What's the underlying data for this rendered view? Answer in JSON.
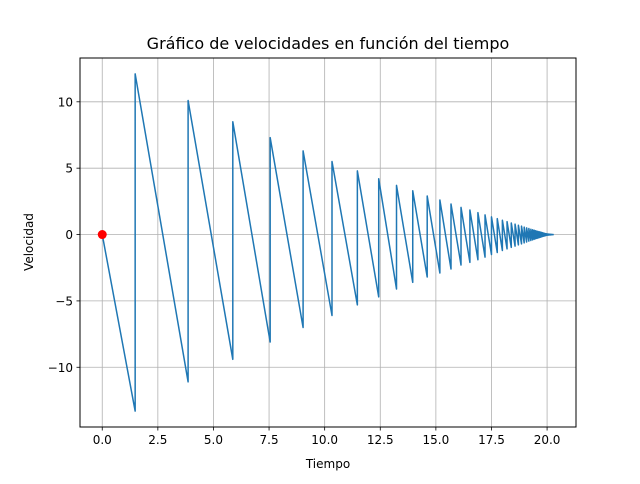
{
  "chart_data": {
    "type": "line",
    "title": "Gráfico de velocidades en función del tiempo",
    "xlabel": "Tiempo",
    "ylabel": "Velocidad",
    "xlim": [
      -1.0,
      21.3
    ],
    "ylim": [
      -14.5,
      13.3
    ],
    "xticks": [
      0.0,
      2.5,
      5.0,
      7.5,
      10.0,
      12.5,
      15.0,
      17.5,
      20.0
    ],
    "xtick_labels": [
      "0.0",
      "2.5",
      "5.0",
      "7.5",
      "10.0",
      "12.5",
      "15.0",
      "17.5",
      "20.0"
    ],
    "yticks": [
      -10,
      -5,
      0,
      5,
      10
    ],
    "ytick_labels": [
      "−10",
      "−5",
      "0",
      "5",
      "10"
    ],
    "grid": true,
    "series": [
      {
        "color": "#1f77b4",
        "bounce_times": [
          0,
          1.48,
          3.86,
          5.87,
          7.55,
          9.03,
          10.33,
          11.47,
          12.43,
          13.23,
          13.96,
          14.61,
          15.18,
          15.68,
          16.13,
          16.53,
          16.89,
          17.21,
          17.5,
          17.76,
          17.99,
          18.2,
          18.39,
          18.56,
          18.71,
          18.85,
          18.97,
          19.08,
          19.18,
          19.27,
          19.35,
          19.42,
          19.48,
          19.54,
          19.59,
          19.64,
          19.68,
          19.72,
          19.76,
          19.79,
          19.82,
          19.85,
          19.87,
          19.89,
          19.91,
          19.93,
          19.95,
          19.97,
          19.99,
          20.01,
          20.03,
          20.05,
          20.07,
          20.09,
          20.11,
          20.13,
          20.15,
          20.17,
          20.19,
          20.21,
          20.23,
          20.3
        ],
        "start_velocity": 0,
        "pre_impact_velocities": [
          -13.3,
          -11.1,
          -9.4,
          -8.1,
          -7.0,
          -6.1,
          -5.3,
          -4.7,
          -4.1,
          -3.6,
          -3.2,
          -2.9,
          -2.6,
          -2.3,
          -2.1,
          -1.9,
          -1.7,
          -1.5,
          -1.35,
          -1.2,
          -1.08,
          -0.97,
          -0.87,
          -0.78,
          -0.7,
          -0.63,
          -0.56,
          -0.5,
          -0.45,
          -0.4,
          -0.36,
          -0.32,
          -0.29,
          -0.26,
          -0.23,
          -0.21,
          -0.19,
          -0.17,
          -0.15,
          -0.13,
          -0.12,
          -0.11,
          -0.1,
          -0.09,
          -0.08,
          -0.07,
          -0.06,
          -0.055,
          -0.05,
          -0.045,
          -0.04,
          -0.035,
          -0.03,
          -0.027,
          -0.024,
          -0.021,
          -0.018,
          -0.015,
          -0.012,
          -0.01,
          -0.005
        ],
        "post_impact_velocities": [
          12.1,
          10.1,
          8.5,
          7.3,
          6.3,
          5.5,
          4.8,
          4.2,
          3.7,
          3.3,
          2.9,
          2.6,
          2.3,
          2.05,
          1.85,
          1.65,
          1.48,
          1.33,
          1.2,
          1.08,
          0.97,
          0.87,
          0.78,
          0.7,
          0.63,
          0.56,
          0.5,
          0.45,
          0.4,
          0.36,
          0.32,
          0.29,
          0.26,
          0.23,
          0.21,
          0.19,
          0.17,
          0.15,
          0.13,
          0.12,
          0.11,
          0.1,
          0.09,
          0.08,
          0.07,
          0.06,
          0.055,
          0.05,
          0.045,
          0.04,
          0.035,
          0.03,
          0.027,
          0.024,
          0.021,
          0.018,
          0.015,
          0.012,
          0.01,
          0.005
        ]
      }
    ],
    "marker": {
      "x": 0.0,
      "y": 0.0,
      "color": "#ff0000"
    }
  }
}
